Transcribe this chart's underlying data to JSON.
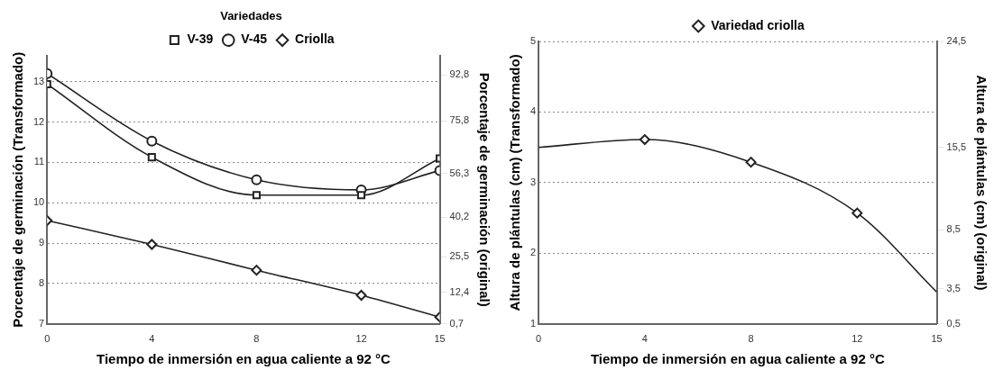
{
  "chart_data": [
    {
      "type": "line",
      "xlabel": "Tiempo de inmersión en agua caliente a 92 °C",
      "ylabel": "Porcentaje de germinación (Transformado)",
      "y2label": "Porcentaje de germinación (original)",
      "legend_title": "Variedades",
      "legend": "top",
      "grid": "y",
      "x": [
        0,
        4,
        8,
        12,
        15
      ],
      "xlim": [
        0,
        15
      ],
      "xticks": [
        0,
        4,
        8,
        12,
        15
      ],
      "ylim": [
        7,
        13.65
      ],
      "yticks": [
        7,
        8,
        9,
        10,
        11,
        12,
        13
      ],
      "y2lim": [
        0.7,
        100
      ],
      "y2ticks": [
        {
          "value": 0.7,
          "label": "0,7"
        },
        {
          "value": 12.4,
          "label": "12,4"
        },
        {
          "value": 25.5,
          "label": "25,5"
        },
        {
          "value": 40.2,
          "label": "40,2"
        },
        {
          "value": 56.3,
          "label": "56,3"
        },
        {
          "value": 75.8,
          "label": "75,8"
        },
        {
          "value": 92.8,
          "label": "92,8"
        }
      ],
      "series": [
        {
          "name": "V-39",
          "color": "#222222",
          "marker": "square",
          "values": [
            12.94,
            11.13,
            10.19,
            10.19,
            11.1
          ]
        },
        {
          "name": "V-45",
          "color": "#222222",
          "marker": "circle",
          "values": [
            13.2,
            11.53,
            10.57,
            10.32,
            10.8
          ]
        },
        {
          "name": "Criolla",
          "color": "#222222",
          "marker": "diamond",
          "values": [
            9.56,
            8.97,
            8.33,
            7.71,
            7.17
          ]
        }
      ]
    },
    {
      "type": "line",
      "xlabel": "Tiempo de inmersión en agua caliente a 92 °C",
      "ylabel": "Altura de plántulas (cm) (Transformado)",
      "y2label": "Altura de plántulas (cm) (original)",
      "legend": "top",
      "grid": "y",
      "xlim": [
        0,
        15
      ],
      "xticks": [
        0,
        4,
        8,
        12,
        15
      ],
      "ylim": [
        1,
        5
      ],
      "yticks": [
        1,
        2,
        3,
        4,
        5
      ],
      "y2lim": [
        0.5,
        24.5
      ],
      "y2ticks": [
        {
          "value": 0.5,
          "label": "0,5"
        },
        {
          "value": 3.5,
          "label": "3,5"
        },
        {
          "value": 8.5,
          "label": "8,5"
        },
        {
          "value": 15.5,
          "label": "15,5"
        },
        {
          "value": 24.5,
          "label": "24,5"
        }
      ],
      "series": [
        {
          "type": "scatter",
          "name": "Variedad criolla",
          "color": "#222222",
          "marker": "diamond",
          "x": [
            4,
            8,
            12
          ],
          "values": [
            3.61,
            3.29,
            2.57
          ]
        },
        {
          "color": "#222222",
          "marker": "none",
          "x": [
            0,
            4,
            8,
            12,
            15
          ],
          "values": [
            3.5,
            3.61,
            3.29,
            2.57,
            1.45
          ]
        }
      ]
    }
  ]
}
